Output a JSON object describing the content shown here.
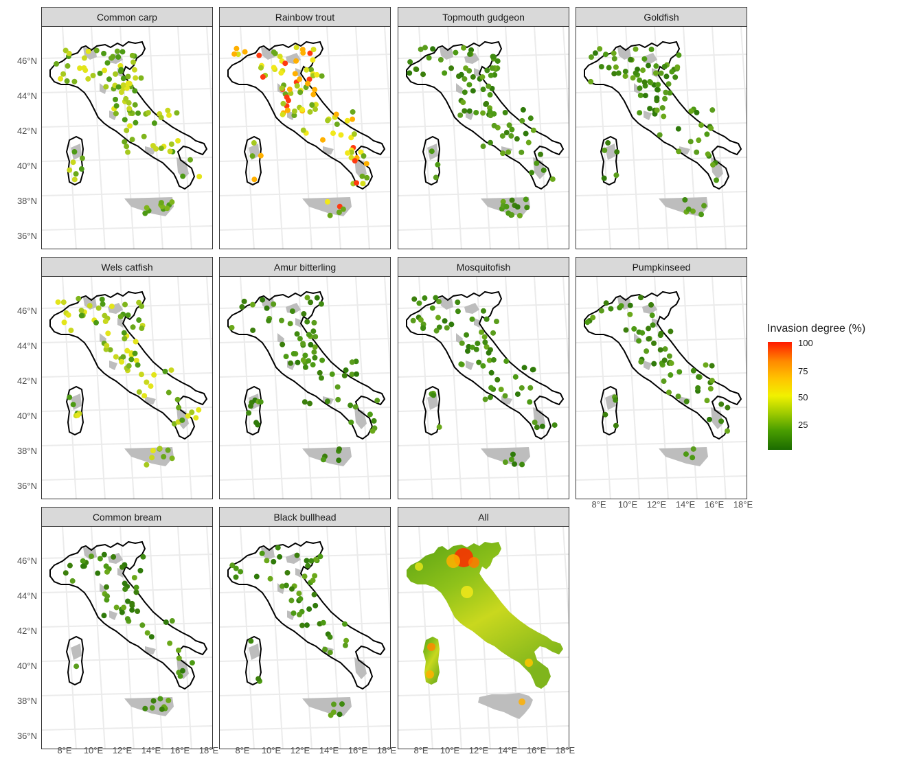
{
  "figure": {
    "panels": [
      {
        "label": "Common carp",
        "palette": "mixed"
      },
      {
        "label": "Rainbow trout",
        "palette": "hot"
      },
      {
        "label": "Topmouth gudgeon",
        "palette": "green"
      },
      {
        "label": "Goldfish",
        "palette": "green"
      },
      {
        "label": "Wels catfish",
        "palette": "mixed"
      },
      {
        "label": "Amur bitterling",
        "palette": "green"
      },
      {
        "label": "Mosquitofish",
        "palette": "green"
      },
      {
        "label": "Pumpkinseed",
        "palette": "green"
      },
      {
        "label": "Common bream",
        "palette": "green"
      },
      {
        "label": "Black bullhead",
        "palette": "green"
      },
      {
        "label": "All",
        "palette": "surface"
      }
    ],
    "y_ticks": [
      "46°N",
      "44°N",
      "42°N",
      "40°N",
      "38°N",
      "36°N"
    ],
    "x_ticks": [
      "8°E",
      "10°E",
      "12°E",
      "14°E",
      "16°E",
      "18°E"
    ],
    "legend": {
      "title": "Invasion degree (%)",
      "ticks": [
        "100",
        "75",
        "50",
        "25"
      ],
      "colors": {
        "low": "#1b6b00",
        "mid": "#f1f100",
        "high": "#ff1a00"
      }
    },
    "colors": {
      "land": "#bdbdbd",
      "coast": "#000000",
      "graticule": "#ebebeb"
    }
  }
}
